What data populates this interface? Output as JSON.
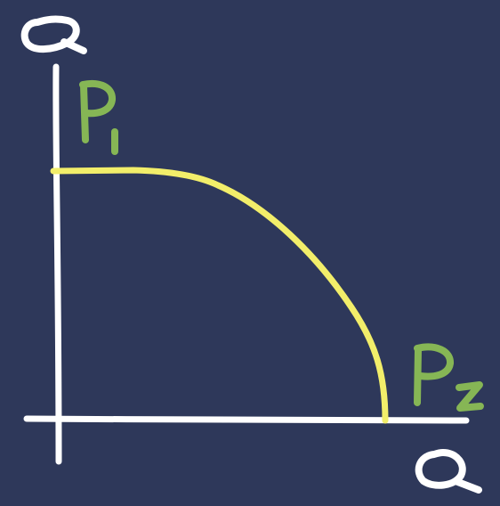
{
  "colors": {
    "background": "#2e385a",
    "axes": "#ffffff",
    "curve": "#f2ee6a",
    "product_labels": "#86b655"
  },
  "labels": {
    "y_axis": "Q",
    "x_axis": "Q",
    "product_1": "P1",
    "product_2": "P2"
  }
}
